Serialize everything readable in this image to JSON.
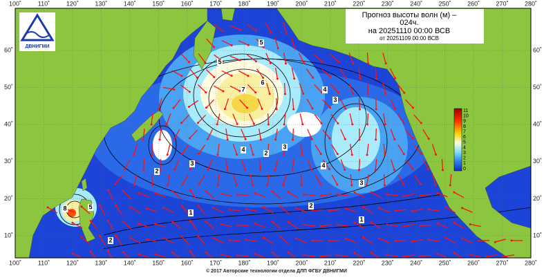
{
  "title": {
    "line1": "Прогноз высоты волн (м) –",
    "line2": "024ч.",
    "line3": "на 20251110 00:00 ВСВ",
    "line4": "от 20251109 00:00 ВСВ"
  },
  "logo": "ДВНИГМИ",
  "lon_labels": [
    "100˚",
    "110˚",
    "120˚",
    "130˚",
    "140˚",
    "150˚",
    "160˚",
    "170˚",
    "180˚",
    "190˚",
    "200˚",
    "210˚",
    "220˚",
    "230˚",
    "240˚",
    "250˚",
    "260˚",
    "270˚",
    "280˚"
  ],
  "lat_labels": [
    "60˚",
    "50˚",
    "40˚",
    "30˚",
    "20˚",
    "10˚"
  ],
  "colorbar_labels": [
    "11",
    "10",
    "9",
    "8",
    "7",
    "6",
    "5",
    "4",
    "3",
    "2",
    "1",
    "0"
  ],
  "contour_labels": [
    "5",
    "6",
    "7",
    "5",
    "4",
    "3",
    "2",
    "4",
    "3",
    "3",
    "2",
    "1",
    "1",
    "2",
    "8",
    "5",
    "2",
    "3",
    "4"
  ],
  "footer": "© 2017 Авторские технологии отдела ДЛП ФГБУ ДВНИГМИ"
}
